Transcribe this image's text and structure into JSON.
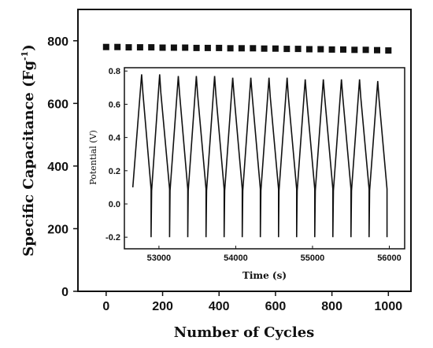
{
  "chart_data": [
    {
      "type": "scatter",
      "xlabel": "Number of Cycles",
      "ylabel": "Specific Capacitance (Fg",
      "ylabel_superscript": "-1",
      "ylabel_suffix": ")",
      "xlim": [
        -100,
        1080
      ],
      "ylim": [
        0,
        900
      ],
      "xticks": [
        0,
        200,
        400,
        600,
        800,
        1000
      ],
      "yticks": [
        0,
        200,
        400,
        600,
        800
      ],
      "marker": "square",
      "color": "#111111",
      "series": [
        {
          "x": [
            0,
            40,
            80,
            120,
            160,
            200,
            240,
            280,
            320,
            360,
            400,
            440,
            480,
            520,
            560,
            600,
            640,
            680,
            720,
            760,
            800,
            840,
            880,
            920,
            960,
            1000
          ],
          "values": [
            780,
            780,
            779,
            779,
            779,
            778,
            778,
            778,
            777,
            777,
            777,
            776,
            776,
            776,
            775,
            775,
            774,
            774,
            773,
            773,
            772,
            772,
            771,
            771,
            770,
            769
          ]
        }
      ]
    },
    {
      "type": "line",
      "xlabel": "Time (s)",
      "ylabel": "Potential (V)",
      "xlim": [
        52550,
        56200
      ],
      "ylim": [
        -0.27,
        0.82
      ],
      "xticks": [
        53000,
        54000,
        55000,
        56000
      ],
      "yticks": [
        -0.2,
        0.0,
        0.2,
        0.4,
        0.6,
        0.8
      ],
      "ytick_labels": [
        "-0.2",
        "0.0",
        "0.2",
        "0.4",
        "0.6",
        "0.8"
      ],
      "color": "#111111",
      "series": [
        {
          "x": [
            52660,
            52775,
            52791,
            52898,
            52898,
            52905,
            53009,
            53025,
            53138,
            53138,
            53145,
            53252,
            53268,
            53375,
            53375,
            53382,
            53487,
            53503,
            53613,
            53613,
            53620,
            53725,
            53741,
            53849,
            53849,
            53856,
            53961,
            53977,
            54085,
            54085,
            54092,
            54197,
            54213,
            54321,
            54321,
            54328,
            54433,
            54449,
            54557,
            54557,
            54564,
            54669,
            54685,
            54793,
            54793,
            54800,
            54905,
            54921,
            55029,
            55029,
            55036,
            55141,
            55157,
            55265,
            55265,
            55272,
            55377,
            55393,
            55501,
            55501,
            55508,
            55613,
            55629,
            55737,
            55737,
            55744,
            55849,
            55865,
            55970,
            55970
          ],
          "values": [
            0.1,
            0.78,
            0.67,
            0.09,
            -0.2,
            0.08,
            0.78,
            0.67,
            0.09,
            -0.2,
            0.08,
            0.77,
            0.67,
            0.09,
            -0.2,
            0.08,
            0.77,
            0.66,
            0.09,
            -0.2,
            0.08,
            0.77,
            0.66,
            0.09,
            -0.2,
            0.08,
            0.76,
            0.66,
            0.09,
            -0.2,
            0.08,
            0.76,
            0.66,
            0.09,
            -0.2,
            0.08,
            0.76,
            0.65,
            0.09,
            -0.2,
            0.08,
            0.76,
            0.65,
            0.09,
            -0.2,
            0.08,
            0.75,
            0.65,
            0.09,
            -0.2,
            0.08,
            0.75,
            0.65,
            0.09,
            -0.2,
            0.08,
            0.75,
            0.65,
            0.09,
            -0.2,
            0.08,
            0.75,
            0.64,
            0.09,
            -0.2,
            0.08,
            0.74,
            0.64,
            0.09,
            -0.2
          ]
        }
      ]
    }
  ]
}
